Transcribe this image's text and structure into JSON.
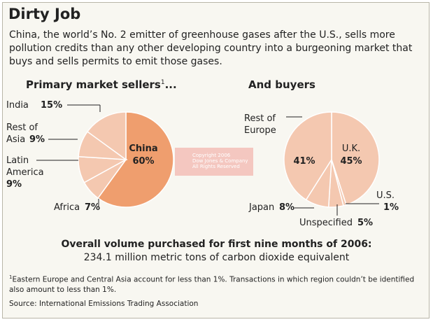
{
  "title": "Dirty Job",
  "intro": "China, the world’s No. 2 emitter of greenhouse gases after the U.S., sells more pollution credits than any other developing country into a burgeoning market that buys and sells permits to emit those gases.",
  "colors": {
    "background": "#f8f7f1",
    "slice_light": "#f4c8b0",
    "slice_highlight": "#ef9e6e",
    "slice_border": "#ffffff"
  },
  "chart_data": [
    {
      "type": "pie",
      "title": "Primary market sellers",
      "title_footnote_marker": "1",
      "title_suffix": "...",
      "slices": [
        {
          "label": "China",
          "value": 60,
          "value_label": "60%",
          "highlight": true
        },
        {
          "label": "Africa",
          "value": 7,
          "value_label": "7%"
        },
        {
          "label": "Latin America",
          "value": 9,
          "value_label": "9%"
        },
        {
          "label": "Rest of Asia",
          "value": 9,
          "value_label": "9%"
        },
        {
          "label": "India",
          "value": 15,
          "value_label": "15%"
        }
      ]
    },
    {
      "type": "pie",
      "title": "And buyers",
      "slices": [
        {
          "label": "U.K.",
          "value": 45,
          "value_label": "45%"
        },
        {
          "label": "U.S.",
          "value": 1,
          "value_label": "1%"
        },
        {
          "label": "Unspecified",
          "value": 5,
          "value_label": "5%"
        },
        {
          "label": "Japan",
          "value": 8,
          "value_label": "8%"
        },
        {
          "label": "Rest of Europe",
          "value": 41,
          "value_label": "41%"
        }
      ]
    }
  ],
  "watermark": [
    "Copyright 2006",
    "Dow Jones & Company",
    "All Rights Reserved"
  ],
  "total": {
    "heading": "Overall volume purchased for first nine months of 2006:",
    "value": "234.1 million metric tons of carbon dioxide equivalent"
  },
  "footnote": {
    "marker": "1",
    "text": "Eastern Europe and Central Asia account for less than 1%. Transactions in which region couldn’t be identified also amount to less than 1%."
  },
  "source": "Source: International Emissions Trading Association"
}
